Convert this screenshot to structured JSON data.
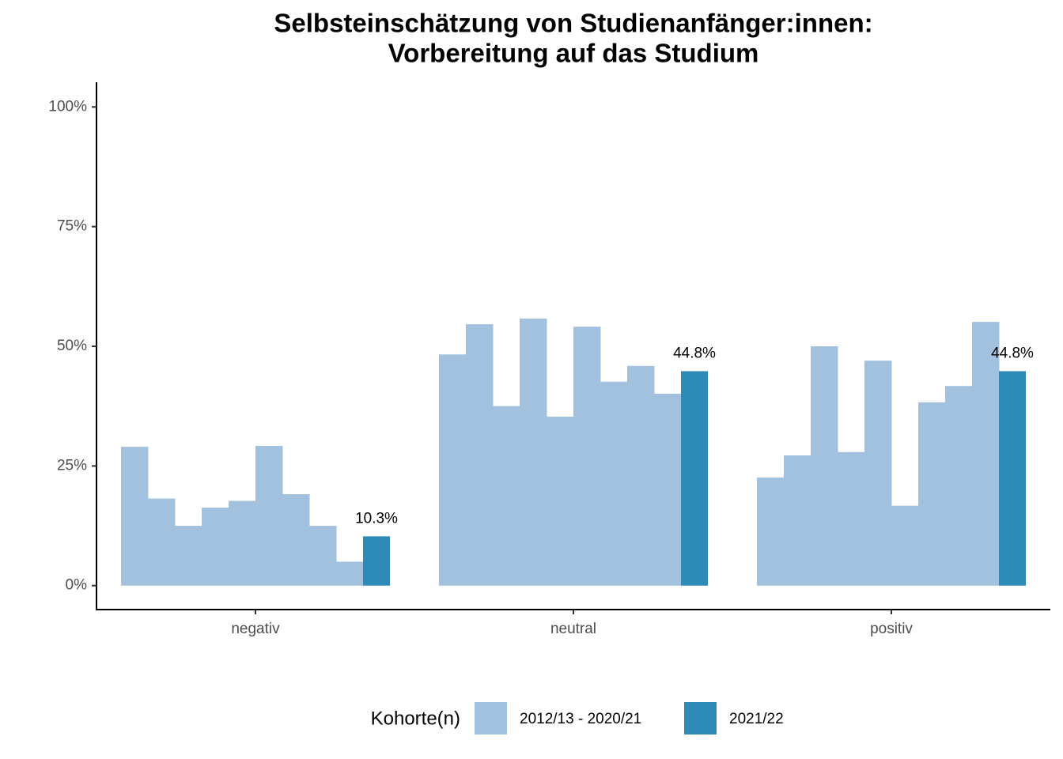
{
  "chart_data": {
    "type": "bar",
    "title": [
      "Selbsteinschätzung von Studienanfänger:innen:",
      "Vorbereitung auf das Studium"
    ],
    "categories": [
      "negativ",
      "neutral",
      "positiv"
    ],
    "legend_title": "Kohorte(n)",
    "series": [
      {
        "name": "2012/13 - 2020/21",
        "color": "#a1c1de",
        "values": [
          [
            29.0,
            18.2,
            12.5,
            16.3,
            17.7,
            29.2,
            19.1,
            12.5,
            5.0
          ],
          [
            48.3,
            54.6,
            37.5,
            55.8,
            35.3,
            54.1,
            42.6,
            45.9,
            40.1
          ],
          [
            22.6,
            27.2,
            50.0,
            27.9,
            47.0,
            16.7,
            38.3,
            41.7,
            55.1
          ]
        ]
      },
      {
        "name": "2021/22",
        "color": "#2e8bb8",
        "values": [
          10.3,
          44.8,
          44.8
        ],
        "value_labels": [
          "10.3%",
          "44.8%",
          "44.8%"
        ]
      }
    ],
    "ylim": [
      -5,
      105
    ],
    "yticks": [
      {
        "value": 0,
        "label": "0%"
      },
      {
        "value": 25,
        "label": "25%"
      },
      {
        "value": 50,
        "label": "50%"
      },
      {
        "value": 75,
        "label": "75%"
      },
      {
        "value": 100,
        "label": "100%"
      }
    ],
    "grid": false
  }
}
